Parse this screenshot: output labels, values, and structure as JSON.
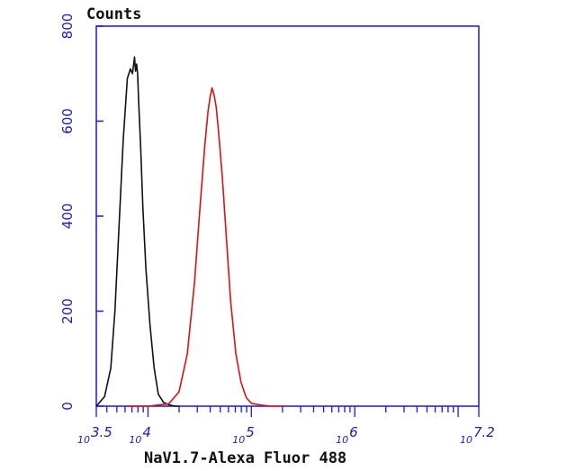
{
  "chart_data": {
    "type": "line",
    "title": "Counts",
    "xlabel": "NaV1.7-Alexa Fluor 488",
    "ylabel": "",
    "x_scale": "log10",
    "xlim_log10": [
      3.5,
      7.2
    ],
    "ylim": [
      0,
      800
    ],
    "yticks": [
      "0",
      "200",
      "400",
      "600",
      "800"
    ],
    "xticks": [
      {
        "base": "10",
        "exp": "3.5"
      },
      {
        "base": "10",
        "exp": "4"
      },
      {
        "base": "10",
        "exp": "5"
      },
      {
        "base": "10",
        "exp": "6"
      },
      {
        "base": "10",
        "exp": "7.2"
      }
    ],
    "grid": false,
    "colors": {
      "axis": "#1a1ad8",
      "text": "#111111"
    },
    "series": [
      {
        "color": "#111111",
        "log10_x": [
          3.5,
          3.58,
          3.64,
          3.68,
          3.72,
          3.76,
          3.8,
          3.83,
          3.85,
          3.87,
          3.88,
          3.89,
          3.9,
          3.91,
          3.93,
          3.95,
          3.98,
          4.02,
          4.06,
          4.1,
          4.15,
          4.2,
          4.26,
          4.3
        ],
        "y": [
          0,
          20,
          80,
          200,
          380,
          560,
          690,
          710,
          700,
          735,
          705,
          720,
          700,
          640,
          540,
          420,
          290,
          170,
          80,
          25,
          8,
          3,
          0,
          0
        ]
      },
      {
        "color": "#e01010",
        "log10_x": [
          3.8,
          4.0,
          4.2,
          4.3,
          4.38,
          4.45,
          4.5,
          4.55,
          4.58,
          4.6,
          4.62,
          4.64,
          4.66,
          4.68,
          4.72,
          4.76,
          4.8,
          4.85,
          4.9,
          4.95,
          5.0,
          5.1,
          5.2,
          5.3
        ],
        "y": [
          0,
          0,
          5,
          30,
          110,
          260,
          410,
          550,
          620,
          650,
          670,
          655,
          630,
          585,
          480,
          350,
          220,
          110,
          50,
          18,
          6,
          2,
          0,
          0
        ]
      }
    ]
  }
}
